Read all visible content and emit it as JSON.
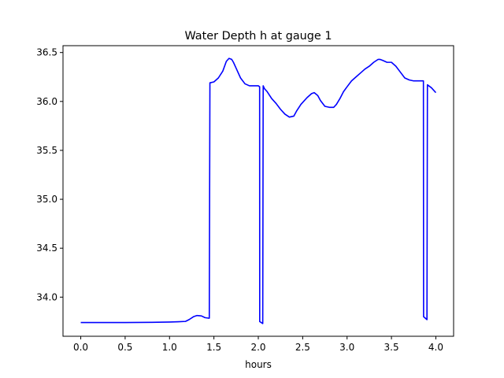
{
  "chart_data": {
    "type": "line",
    "title": "Water Depth h at gauge 1",
    "xlabel": "hours",
    "ylabel": "",
    "xlim": [
      -0.2,
      4.2
    ],
    "ylim": [
      33.6,
      36.57
    ],
    "grid": false,
    "legend": "none",
    "x_ticks": [
      {
        "value": 0.0,
        "label": "0.0"
      },
      {
        "value": 0.5,
        "label": "0.5"
      },
      {
        "value": 1.0,
        "label": "1.0"
      },
      {
        "value": 1.5,
        "label": "1.5"
      },
      {
        "value": 2.0,
        "label": "2.0"
      },
      {
        "value": 2.5,
        "label": "2.5"
      },
      {
        "value": 3.0,
        "label": "3.0"
      },
      {
        "value": 3.5,
        "label": "3.5"
      },
      {
        "value": 4.0,
        "label": "4.0"
      }
    ],
    "y_ticks": [
      {
        "value": 34.0,
        "label": "34.0"
      },
      {
        "value": 34.5,
        "label": "34.5"
      },
      {
        "value": 35.0,
        "label": "35.0"
      },
      {
        "value": 35.5,
        "label": "35.5"
      },
      {
        "value": 36.0,
        "label": "36.0"
      },
      {
        "value": 36.5,
        "label": "36.5"
      }
    ],
    "series": [
      {
        "color": "#0000ff",
        "x": [
          0.0,
          0.5,
          0.8,
          1.0,
          1.1,
          1.18,
          1.22,
          1.27,
          1.31,
          1.36,
          1.4,
          1.44,
          1.448,
          1.455,
          1.5,
          1.55,
          1.6,
          1.64,
          1.67,
          1.7,
          1.72,
          1.75,
          1.8,
          1.85,
          1.9,
          1.95,
          2.0,
          2.015,
          2.016,
          2.05,
          2.055,
          2.07,
          2.1,
          2.15,
          2.2,
          2.25,
          2.3,
          2.35,
          2.4,
          2.43,
          2.48,
          2.55,
          2.6,
          2.63,
          2.67,
          2.7,
          2.75,
          2.8,
          2.85,
          2.88,
          2.92,
          2.96,
          3.0,
          3.05,
          3.1,
          3.15,
          3.2,
          3.25,
          3.3,
          3.35,
          3.37,
          3.4,
          3.45,
          3.5,
          3.55,
          3.6,
          3.65,
          3.7,
          3.75,
          3.8,
          3.85,
          3.86,
          3.862,
          3.9,
          3.905,
          3.95,
          4.0
        ],
        "y": [
          33.74,
          33.74,
          33.742,
          33.745,
          33.748,
          33.752,
          33.77,
          33.8,
          33.812,
          33.808,
          33.79,
          33.785,
          33.785,
          36.19,
          36.2,
          36.24,
          36.31,
          36.41,
          36.44,
          36.43,
          36.4,
          36.34,
          36.24,
          36.18,
          36.16,
          36.16,
          36.16,
          36.15,
          33.75,
          33.73,
          36.16,
          36.13,
          36.1,
          36.03,
          35.98,
          35.92,
          35.87,
          35.84,
          35.85,
          35.9,
          35.97,
          36.04,
          36.08,
          36.09,
          36.06,
          36.01,
          35.95,
          35.94,
          35.94,
          35.97,
          36.03,
          36.1,
          36.15,
          36.21,
          36.25,
          36.29,
          36.33,
          36.36,
          36.4,
          36.43,
          36.43,
          36.42,
          36.4,
          36.4,
          36.36,
          36.3,
          36.24,
          36.22,
          36.21,
          36.21,
          36.21,
          36.21,
          33.8,
          33.77,
          36.17,
          36.14,
          36.09
        ]
      }
    ]
  }
}
